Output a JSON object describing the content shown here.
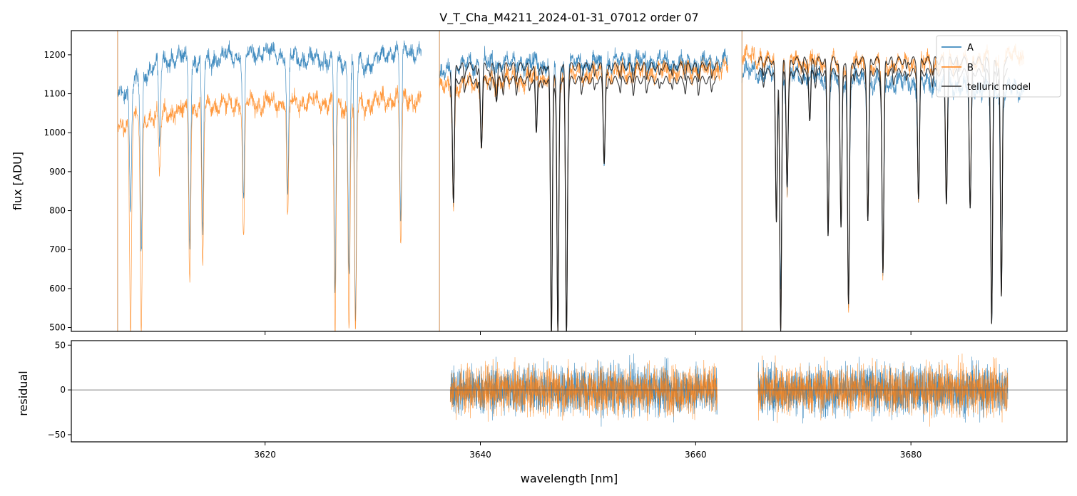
{
  "chart_data": [
    {
      "type": "line",
      "panel": "top",
      "title": "V_T_Cha_M4211_2024-01-31_07012  order 07",
      "xlabel": "",
      "ylabel": "flux [ADU]",
      "xlim": [
        3602,
        3694.5
      ],
      "ylim": [
        490,
        1262
      ],
      "yticks": [
        500,
        600,
        700,
        800,
        900,
        1000,
        1100,
        1200
      ],
      "xticks": [
        3620,
        3640,
        3660,
        3680
      ],
      "show_xtick_labels": false,
      "grid": false,
      "legend_position": "top-right",
      "colors": {
        "A": "#1f77b4",
        "B": "#ff7f0e",
        "telluric model": "#000000"
      },
      "series": [
        {
          "name": "A",
          "segments": [
            {
              "x0": 3606.3,
              "x1": 3634.5,
              "level": [
                [
                  3606.3,
                  1090
                ],
                [
                  3608,
                  1130
                ],
                [
                  3610,
                  1180
                ],
                [
                  3612,
                  1195
                ],
                [
                  3614,
                  1180
                ],
                [
                  3616,
                  1195
                ],
                [
                  3618,
                  1200
                ],
                [
                  3620,
                  1205
                ],
                [
                  3622,
                  1195
                ],
                [
                  3624,
                  1190
                ],
                [
                  3626,
                  1185
                ],
                [
                  3628,
                  1180
                ],
                [
                  3629.5,
                  1175
                ],
                [
                  3631,
                  1200
                ],
                [
                  3633,
                  1215
                ],
                [
                  3634.5,
                  1200
                ]
              ]
            },
            {
              "x0": 3636.2,
              "x1": 3663.0,
              "level": [
                [
                  3636.2,
                  1140
                ],
                [
                  3638,
                  1175
                ],
                [
                  3645,
                  1180
                ],
                [
                  3650,
                  1175
                ],
                [
                  3655,
                  1185
                ],
                [
                  3660,
                  1175
                ],
                [
                  3663,
                  1185
                ]
              ]
            },
            {
              "x0": 3664.3,
              "x1": 3690.5,
              "level": [
                [
                  3664.3,
                  1160
                ],
                [
                  3667,
                  1150
                ],
                [
                  3672,
                  1140
                ],
                [
                  3678,
                  1130
                ],
                [
                  3684,
                  1120
                ],
                [
                  3690.5,
                  1110
                ]
              ]
            }
          ],
          "absorption_lines": [
            [
              3607.5,
              800
            ],
            [
              3608.5,
              700
            ],
            [
              3610.2,
              980
            ],
            [
              3613.0,
              700
            ],
            [
              3614.2,
              750
            ],
            [
              3618.0,
              820
            ],
            [
              3622.1,
              850
            ],
            [
              3626.5,
              600
            ],
            [
              3627.8,
              650
            ],
            [
              3628.4,
              520
            ],
            [
              3632.6,
              780
            ],
            [
              3637.5,
              820
            ],
            [
              3640.1,
              960
            ],
            [
              3646.6,
              480
            ],
            [
              3647.2,
              490
            ],
            [
              3648.0,
              480
            ],
            [
              3651.5,
              920
            ],
            [
              3667.5,
              800
            ],
            [
              3667.9,
              600
            ],
            [
              3668.5,
              850
            ],
            [
              3672.3,
              760
            ],
            [
              3673.5,
              780
            ],
            [
              3674.2,
              560
            ],
            [
              3676.0,
              800
            ],
            [
              3677.4,
              640
            ],
            [
              3680.7,
              840
            ],
            [
              3683.3,
              830
            ],
            [
              3685.5,
              810
            ],
            [
              3687.5,
              500
            ],
            [
              3688.4,
              580
            ]
          ]
        },
        {
          "name": "B",
          "segments": [
            {
              "x0": 3606.3,
              "x1": 3634.5,
              "level": [
                [
                  3606.3,
                  1010
                ],
                [
                  3608,
                  1035
                ],
                [
                  3612,
                  1055
                ],
                [
                  3614,
                  1070
                ],
                [
                  3618,
                  1075
                ],
                [
                  3622,
                  1080
                ],
                [
                  3626,
                  1075
                ],
                [
                  3628,
                  1060
                ],
                [
                  3630,
                  1080
                ],
                [
                  3633,
                  1090
                ],
                [
                  3634.5,
                  1080
                ]
              ]
            },
            {
              "x0": 3636.2,
              "x1": 3663.0,
              "level": [
                [
                  3636.2,
                  1110
                ],
                [
                  3640,
                  1130
                ],
                [
                  3645,
                  1140
                ],
                [
                  3650,
                  1150
                ],
                [
                  3655,
                  1155
                ],
                [
                  3660,
                  1160
                ],
                [
                  3663,
                  1165
                ]
              ]
            },
            {
              "x0": 3664.3,
              "x1": 3690.5,
              "level": [
                [
                  3664.3,
                  1200
                ],
                [
                  3667,
                  1185
                ],
                [
                  3672,
                  1180
                ],
                [
                  3678,
                  1175
                ],
                [
                  3684,
                  1180
                ],
                [
                  3690.5,
                  1200
                ]
              ]
            }
          ],
          "absorption_lines": [
            [
              3607.5,
              490
            ],
            [
              3608.5,
              490
            ],
            [
              3610.2,
              900
            ],
            [
              3613.0,
              620
            ],
            [
              3614.2,
              660
            ],
            [
              3618.0,
              730
            ],
            [
              3622.1,
              790
            ],
            [
              3626.5,
              490
            ],
            [
              3627.8,
              490
            ],
            [
              3628.4,
              490
            ],
            [
              3632.6,
              710
            ],
            [
              3637.5,
              810
            ],
            [
              3640.1,
              960
            ],
            [
              3646.6,
              480
            ],
            [
              3647.2,
              490
            ],
            [
              3648.0,
              490
            ],
            [
              3651.5,
              920
            ],
            [
              3667.5,
              800
            ],
            [
              3667.9,
              480
            ],
            [
              3668.5,
              850
            ],
            [
              3672.3,
              760
            ],
            [
              3673.5,
              780
            ],
            [
              3674.2,
              550
            ],
            [
              3676.0,
              800
            ],
            [
              3677.4,
              630
            ],
            [
              3680.7,
              840
            ],
            [
              3683.3,
              830
            ],
            [
              3685.5,
              810
            ],
            [
              3687.5,
              520
            ],
            [
              3688.4,
              580
            ]
          ]
        },
        {
          "name": "telluric model",
          "segments": [
            {
              "x0": 3637.2,
              "x1": 3662.0,
              "level_A": 1170,
              "level_B": 1135
            },
            {
              "x0": 3665.8,
              "x1": 3689.0,
              "level_A": 1155,
              "level_B": 1185
            }
          ],
          "absorption_lines": [
            [
              3637.5,
              820
            ],
            [
              3640.1,
              960
            ],
            [
              3641.5,
              1080
            ],
            [
              3645.2,
              1000
            ],
            [
              3646.6,
              480
            ],
            [
              3647.2,
              490
            ],
            [
              3648.0,
              480
            ],
            [
              3651.5,
              920
            ],
            [
              3667.5,
              800
            ],
            [
              3667.9,
              490
            ],
            [
              3668.5,
              860
            ],
            [
              3670.6,
              1030
            ],
            [
              3672.3,
              760
            ],
            [
              3673.5,
              780
            ],
            [
              3674.2,
              560
            ],
            [
              3676.0,
              800
            ],
            [
              3677.4,
              640
            ],
            [
              3680.7,
              840
            ],
            [
              3683.3,
              830
            ],
            [
              3685.5,
              810
            ],
            [
              3687.5,
              510
            ],
            [
              3688.4,
              580
            ]
          ]
        }
      ]
    },
    {
      "type": "line",
      "panel": "bottom",
      "title": "",
      "xlabel": "wavelength [nm]",
      "ylabel": "residual",
      "xlim": [
        3602,
        3694.5
      ],
      "ylim": [
        -58,
        55
      ],
      "yticks": [
        -50,
        0,
        50
      ],
      "ytick_labels": [
        "−50",
        "0",
        "50"
      ],
      "xticks": [
        3620,
        3640,
        3660,
        3680
      ],
      "grid": false,
      "zero_line": 0,
      "series": [
        {
          "name": "A",
          "segments": [
            [
              3637.2,
              3662.0
            ],
            [
              3665.8,
              3689.0
            ]
          ],
          "amplitude": 25
        },
        {
          "name": "B",
          "segments": [
            [
              3637.2,
              3662.0
            ],
            [
              3665.8,
              3689.0
            ]
          ],
          "amplitude": 25
        }
      ]
    }
  ]
}
